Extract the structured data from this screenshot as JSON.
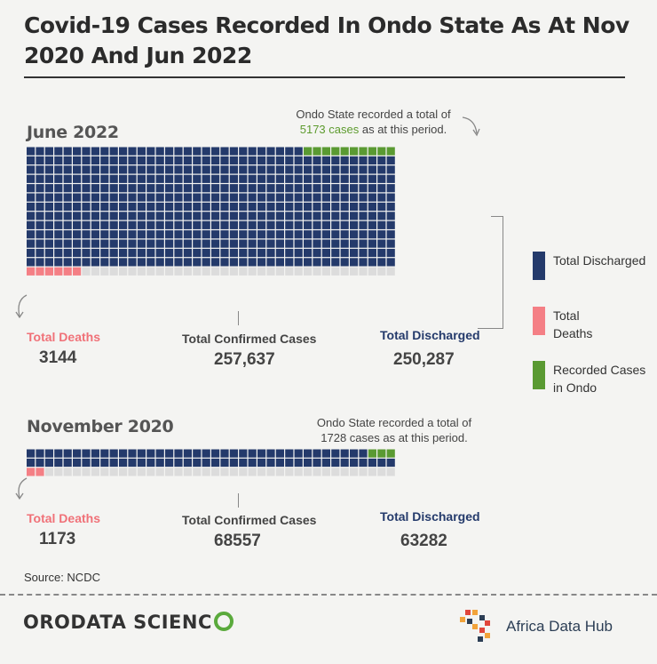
{
  "title": "Covid-19 Cases Recorded In Ondo State As At Nov 2020 And Jun 2022",
  "colors": {
    "discharged": "#243a6b",
    "deaths": "#f47f85",
    "ondo": "#5a9a32",
    "empty": "#dcdcdc"
  },
  "legend": [
    {
      "label": "Total Discharged",
      "color_key": "discharged"
    },
    {
      "label": "Total Deaths",
      "color_key": "deaths"
    },
    {
      "label": "Recorded Cases in Ondo",
      "color_key": "ondo"
    }
  ],
  "chart_data": [
    {
      "type": "waffle",
      "title": "June 2022",
      "note_prefix": "Ondo State recorded a total of",
      "note_highlight": "5173 cases",
      "note_suffix": "as at this period.",
      "columns": 40,
      "discharged_rows": 13,
      "ondo_squares": 10,
      "deaths_squares": 6,
      "deaths_label": "Total Deaths",
      "deaths_value": "3144",
      "confirmed_label": "Total Confirmed Cases",
      "confirmed_value": "257,637",
      "discharged_label": "Total Discharged",
      "discharged_value": "250,287"
    },
    {
      "type": "waffle",
      "title": "November 2020",
      "note_prefix": "Ondo State recorded a total of",
      "note_highlight": "",
      "note_suffix": "1728 cases as at this period.",
      "columns": 40,
      "discharged_rows": 2,
      "ondo_squares": 3,
      "deaths_squares": 2,
      "deaths_label": "Total Deaths",
      "deaths_value": "1173",
      "confirmed_label": "Total Confirmed Cases",
      "confirmed_value": "68557",
      "discharged_label": "Total Discharged",
      "discharged_value": "63282"
    }
  ],
  "source": "Source: NCDC",
  "logos": {
    "orodata_a": "ORODATA SCIENC",
    "africa_data_hub": "Africa Data Hub"
  }
}
